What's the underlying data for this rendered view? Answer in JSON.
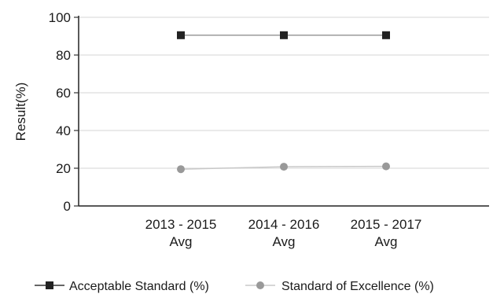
{
  "chart_data": {
    "type": "line",
    "ylabel": "Result(%)",
    "xlabel": "",
    "ylim": [
      0,
      100
    ],
    "yticks": [
      "0",
      "20",
      "40",
      "60",
      "80",
      "100"
    ],
    "categories": [
      [
        "2013 - 2015",
        "Avg"
      ],
      [
        "2014 - 2016",
        "Avg"
      ],
      [
        "2015 - 2017",
        "Avg"
      ]
    ],
    "series": [
      {
        "name": "Acceptable Standard (%)",
        "values": [
          90.5,
          90.5,
          90.5
        ],
        "color": "#222222",
        "line_color": "#9a9a9a",
        "marker": "square"
      },
      {
        "name": "Standard of Excellence (%)",
        "values": [
          19.5,
          20.8,
          21.0
        ],
        "color": "#999999",
        "line_color": "#c8c8c8",
        "marker": "circle"
      }
    ],
    "grid": true,
    "grid_color": "#dddddd",
    "legend_position": "bottom"
  }
}
